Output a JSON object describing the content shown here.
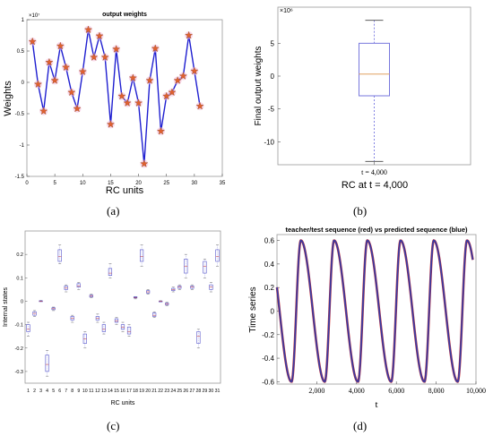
{
  "captions": {
    "a": "(a)",
    "b": "(b)",
    "c": "(c)",
    "d": "(d)"
  },
  "chart_data": [
    {
      "id": "a",
      "type": "line",
      "title": "output weights",
      "xlabel": "RC units",
      "ylabel": "Weights",
      "exponent_label": "×10⁷",
      "xlim": [
        0,
        35
      ],
      "ylim": [
        -1.5,
        1
      ],
      "xticks": [
        0,
        5,
        10,
        15,
        20,
        25,
        30,
        35
      ],
      "yticks": [
        -1.5,
        -1,
        -0.5,
        0,
        0.5,
        1
      ],
      "ytick_labels": [
        "-1.5",
        "-1",
        "-0.5",
        "0",
        "0.5",
        "1"
      ],
      "series": [
        {
          "x": [
            1,
            2,
            3,
            4,
            5,
            6,
            7,
            8,
            9,
            10,
            11,
            12,
            13,
            14,
            15,
            16,
            17,
            18,
            19,
            20,
            21,
            22,
            23,
            24,
            25,
            26,
            27,
            28,
            29,
            30,
            31
          ],
          "values": [
            0.65,
            -0.03,
            -0.46,
            0.32,
            0.03,
            0.58,
            0.24,
            -0.16,
            -0.42,
            0.17,
            0.84,
            0.4,
            0.74,
            0.4,
            -0.67,
            0.53,
            -0.22,
            -0.33,
            0.07,
            -0.33,
            -1.3,
            0.03,
            0.54,
            -0.78,
            -0.22,
            -0.16,
            0.03,
            0.1,
            0.75,
            0.18,
            -0.38
          ],
          "color": "#1f1fd0",
          "marker": "star",
          "marker_color": "#e06030"
        }
      ]
    },
    {
      "id": "b",
      "type": "box",
      "xlabel": "RC at t = 4,000",
      "ylabel": "Final output weights",
      "exponent_label": "×10⁶",
      "categories": [
        "t = 4,000"
      ],
      "ylim": [
        -13.5,
        10.5
      ],
      "yticks": [
        -10,
        -5,
        0,
        5
      ],
      "boxes": [
        {
          "min": -13,
          "q1": -3,
          "median": 0.3,
          "q3": 5,
          "max": 8.5
        }
      ]
    },
    {
      "id": "c",
      "type": "box",
      "xlabel": "RC units",
      "ylabel": "Internal states",
      "ylim": [
        -0.35,
        0.3
      ],
      "yticks": [
        -0.3,
        -0.2,
        -0.1,
        0,
        0.1,
        0.2
      ],
      "ytick_labels": [
        "-0.3",
        "-0.2",
        "-0.1",
        "0",
        "0.1",
        "0.2"
      ],
      "categories": [
        "1",
        "2",
        "3",
        "4",
        "5",
        "6",
        "7",
        "8",
        "9",
        "10",
        "11",
        "12",
        "13",
        "14",
        "15",
        "16",
        "17",
        "18",
        "19",
        "20",
        "21",
        "22",
        "23",
        "24",
        "25",
        "26",
        "27",
        "28",
        "29",
        "30",
        "31"
      ],
      "boxes": [
        {
          "min": -0.15,
          "q1": -0.13,
          "median": -0.12,
          "q3": -0.1,
          "max": -0.09
        },
        {
          "min": -0.065,
          "q1": -0.06,
          "median": -0.052,
          "q3": -0.045,
          "max": -0.04
        },
        {
          "min": 0.0,
          "q1": 0.0,
          "median": 0.0,
          "q3": 0.002,
          "max": 0.003
        },
        {
          "min": -0.32,
          "q1": -0.3,
          "median": -0.27,
          "q3": -0.23,
          "max": -0.21
        },
        {
          "min": -0.04,
          "q1": -0.036,
          "median": -0.032,
          "q3": -0.028,
          "max": -0.025
        },
        {
          "min": 0.16,
          "q1": 0.17,
          "median": 0.19,
          "q3": 0.22,
          "max": 0.24
        },
        {
          "min": 0.04,
          "q1": 0.05,
          "median": 0.056,
          "q3": 0.065,
          "max": 0.07
        },
        {
          "min": -0.09,
          "q1": -0.08,
          "median": -0.072,
          "q3": -0.065,
          "max": -0.06
        },
        {
          "min": 0.05,
          "q1": 0.06,
          "median": 0.065,
          "q3": 0.075,
          "max": 0.08
        },
        {
          "min": -0.2,
          "q1": -0.18,
          "median": -0.16,
          "q3": -0.14,
          "max": -0.13
        },
        {
          "min": 0.015,
          "q1": 0.018,
          "median": 0.022,
          "q3": 0.026,
          "max": 0.03
        },
        {
          "min": -0.09,
          "q1": -0.08,
          "median": -0.072,
          "q3": -0.065,
          "max": -0.055
        },
        {
          "min": -0.14,
          "q1": -0.13,
          "median": -0.12,
          "q3": -0.1,
          "max": -0.09
        },
        {
          "min": 0.1,
          "q1": 0.11,
          "median": 0.12,
          "q3": 0.14,
          "max": 0.16
        },
        {
          "min": -0.1,
          "q1": -0.09,
          "median": -0.085,
          "q3": -0.075,
          "max": -0.07
        },
        {
          "min": -0.13,
          "q1": -0.12,
          "median": -0.11,
          "q3": -0.1,
          "max": -0.09
        },
        {
          "min": -0.15,
          "q1": -0.14,
          "median": -0.13,
          "q3": -0.11,
          "max": -0.1
        },
        {
          "min": 0.01,
          "q1": 0.014,
          "median": 0.016,
          "q3": 0.019,
          "max": 0.02
        },
        {
          "min": 0.15,
          "q1": 0.17,
          "median": 0.19,
          "q3": 0.22,
          "max": 0.24
        },
        {
          "min": 0.03,
          "q1": 0.035,
          "median": 0.04,
          "q3": 0.045,
          "max": 0.05
        },
        {
          "min": -0.07,
          "q1": -0.065,
          "median": -0.06,
          "q3": -0.05,
          "max": -0.045
        },
        {
          "min": 0.0,
          "q1": 0.0,
          "median": 0.0,
          "q3": 0.001,
          "max": 0.002
        },
        {
          "min": -0.02,
          "q1": -0.015,
          "median": -0.012,
          "q3": -0.008,
          "max": -0.005
        },
        {
          "min": 0.04,
          "q1": 0.045,
          "median": 0.05,
          "q3": 0.055,
          "max": 0.06
        },
        {
          "min": 0.05,
          "q1": 0.055,
          "median": 0.06,
          "q3": 0.065,
          "max": 0.07
        },
        {
          "min": 0.1,
          "q1": 0.12,
          "median": 0.15,
          "q3": 0.18,
          "max": 0.2
        },
        {
          "min": 0.05,
          "q1": 0.055,
          "median": 0.06,
          "q3": 0.065,
          "max": 0.07
        },
        {
          "min": -0.2,
          "q1": -0.18,
          "median": -0.15,
          "q3": -0.13,
          "max": -0.12
        },
        {
          "min": 0.1,
          "q1": 0.12,
          "median": 0.15,
          "q3": 0.17,
          "max": 0.18
        },
        {
          "min": 0.04,
          "q1": 0.05,
          "median": 0.06,
          "q3": 0.07,
          "max": 0.08
        },
        {
          "min": 0.15,
          "q1": 0.17,
          "median": 0.19,
          "q3": 0.22,
          "max": 0.24
        }
      ]
    },
    {
      "id": "d",
      "type": "line",
      "title": "teacher/test sequence (red) vs predicted sequence (blue)",
      "xlabel": "t",
      "ylabel": "Time series",
      "xlim": [
        0,
        10000
      ],
      "ylim": [
        -0.62,
        0.65
      ],
      "xticks": [
        2000,
        4000,
        6000,
        8000,
        10000
      ],
      "xtick_labels": [
        "2,000",
        "4,000",
        "6,000",
        "8,000",
        "10,000"
      ],
      "yticks": [
        -0.6,
        -0.4,
        -0.2,
        0,
        0.2,
        0.4,
        0.6
      ],
      "ytick_labels": [
        "-0.6",
        "-0.4",
        "-0.2",
        "0",
        "0.2",
        "0.4",
        "0.6"
      ],
      "period": 1670,
      "phase_offset": 1200,
      "series": [
        {
          "name": "teacher",
          "color": "#d03030"
        },
        {
          "name": "predicted",
          "color": "#3a3aa0"
        }
      ]
    }
  ]
}
